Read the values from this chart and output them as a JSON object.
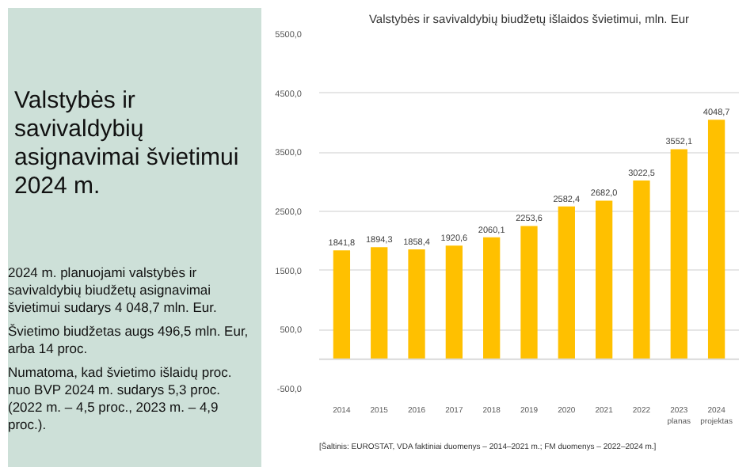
{
  "chart_data": [
    {
      "type": "other",
      "title": "Valstybės ir savivaldybių asignavimai švietimui 2024 m.",
      "annotations": [
        "2024 m. planuojami valstybės ir savivaldybių biudžetų asignavimai švietimui sudarys 4 048,7 mln. Eur.",
        "Švietimo biudžetas augs 496,5 mln. Eur, arba 14 proc.",
        "Numatoma, kad švietimo išlaidų proc. nuo BVP 2024 m. sudarys 5,3 proc. (2022 m. – 4,5 proc., 2023 m. – 4,9 proc.)."
      ]
    },
    {
      "type": "bar",
      "title": "Valstybės ir savivaldybių biudžetų išlaidos švietimui, mln. Eur",
      "categories": [
        "2014",
        "2015",
        "2016",
        "2017",
        "2018",
        "2019",
        "2020",
        "2021",
        "2022",
        "2023\nplanas",
        "2024\nprojektas"
      ],
      "values": [
        1841.8,
        1894.3,
        1858.4,
        1920.6,
        2060.1,
        2253.6,
        2582.4,
        2682.0,
        3022.5,
        3552.1,
        4048.7
      ],
      "value_labels": [
        "1841,8",
        "1894,3",
        "1858,4",
        "1920,6",
        "2060,1",
        "2253,6",
        "2582,4",
        "2682,0",
        "3022,5",
        "3552,1",
        "4048,7"
      ],
      "color": "#ffc000",
      "ylim": [
        -500,
        5500
      ],
      "yticks": [
        {
          "value": -500,
          "label": "-500,0"
        },
        {
          "value": 500,
          "label": "500,0"
        },
        {
          "value": 1500,
          "label": "1500,0"
        },
        {
          "value": 2500,
          "label": "2500,0"
        },
        {
          "value": 3500,
          "label": "3500,0"
        },
        {
          "value": 4500,
          "label": "4500,0"
        },
        {
          "value": 5500,
          "label": "5500,0"
        }
      ],
      "grid": "y",
      "annotations": [
        "[Šaltinis: EUROSTAT, VDA faktiniai duomenys – 2014–2021 m.; FM duomenys – 2022–2024 m.]"
      ]
    }
  ]
}
